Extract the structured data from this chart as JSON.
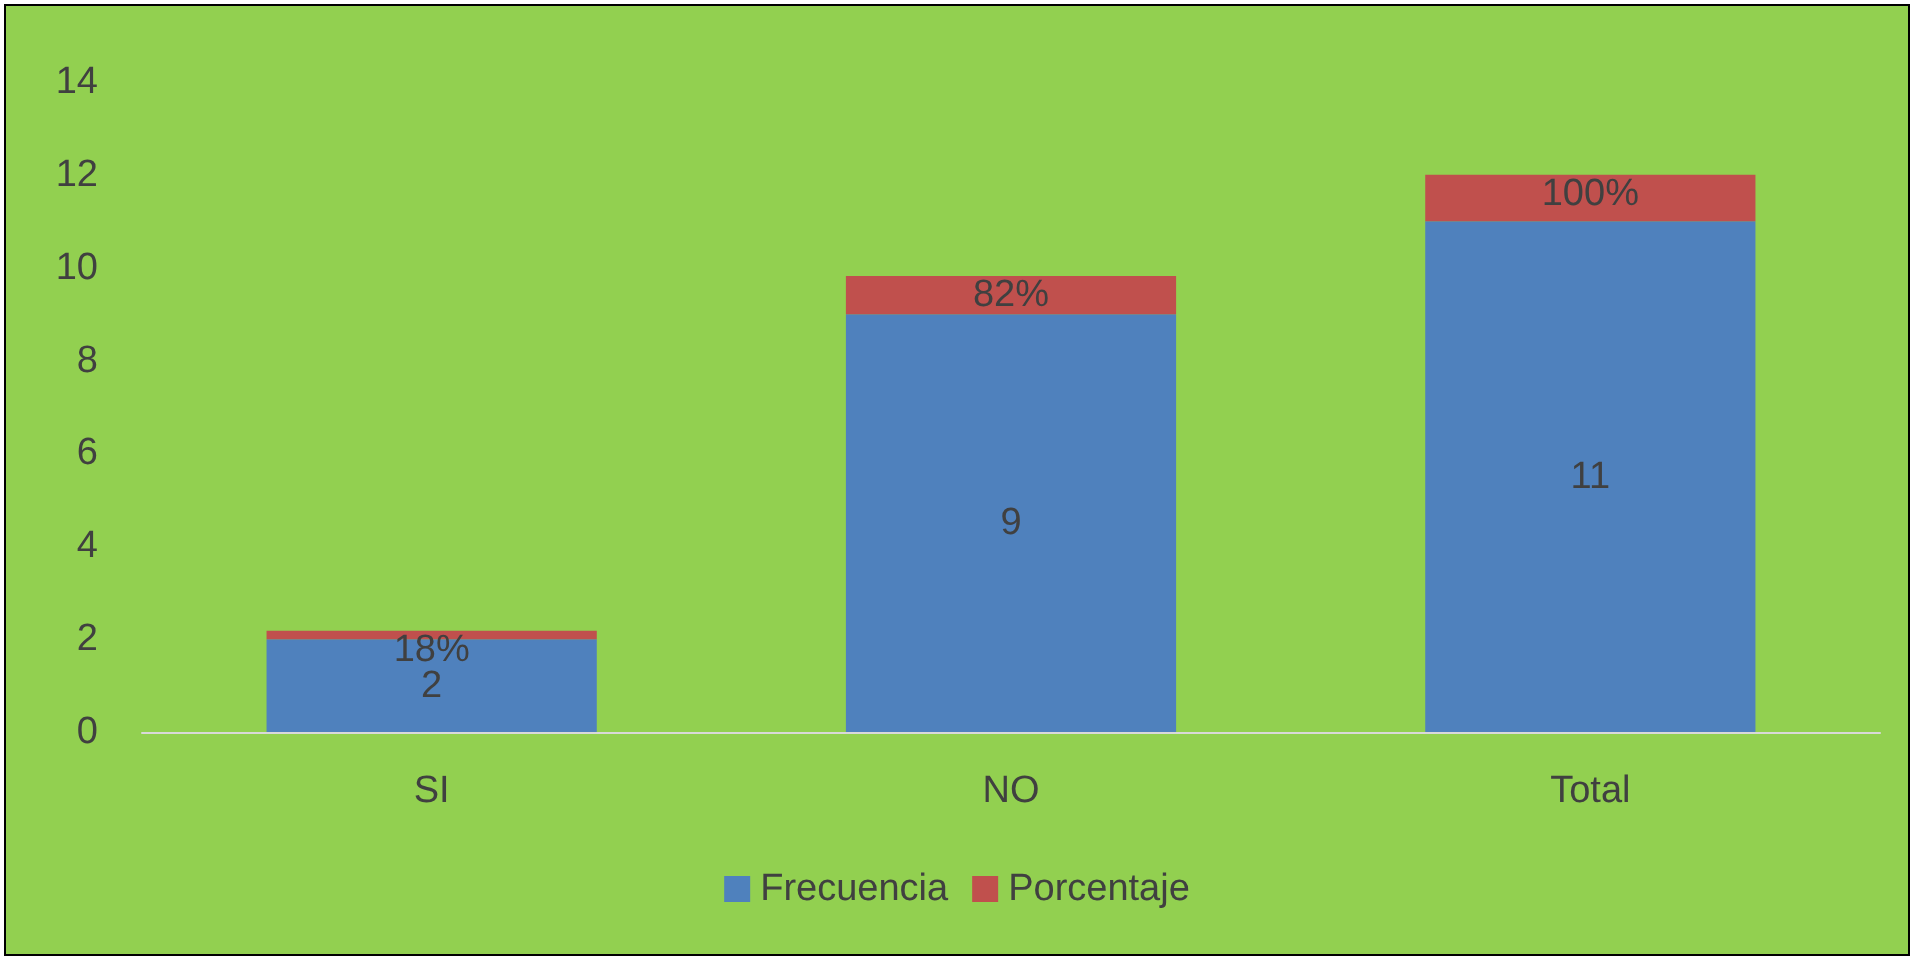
{
  "chart_data": {
    "type": "bar",
    "categories": [
      "SI",
      "NO",
      "Total"
    ],
    "stacked": true,
    "ylim": [
      0,
      14
    ],
    "yticks": [
      0,
      2,
      4,
      6,
      8,
      10,
      12,
      14
    ],
    "legend": "bottom",
    "series": [
      {
        "name": "Frecuencia",
        "color": "#4f81bd",
        "values": [
          2,
          9,
          11
        ],
        "value_labels": [
          "2",
          "9",
          "11"
        ]
      },
      {
        "name": "Porcentaje",
        "color": "#c0504d",
        "values": [
          0.18,
          0.82,
          1
        ],
        "value_labels": [
          "18%",
          "82%",
          "100%"
        ]
      }
    ]
  }
}
